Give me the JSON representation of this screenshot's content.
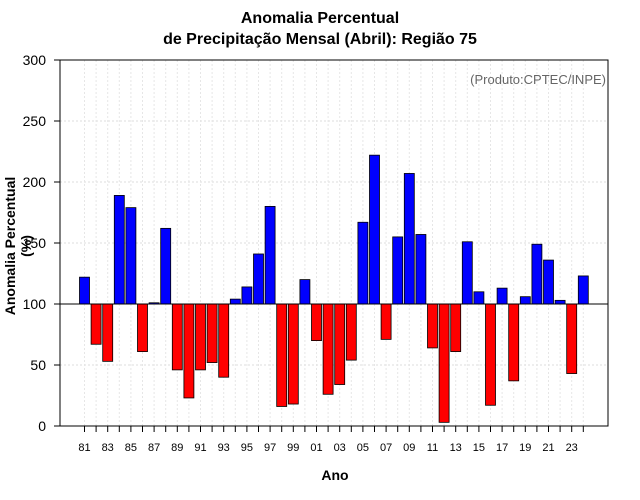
{
  "chart_data": {
    "type": "bar",
    "title": [
      "Anomalia Percentual",
      "de Precipitação Mensal (Abril): Região 75"
    ],
    "xlabel": "Ano",
    "ylabel": "Anomalia Percentual (%)",
    "source": "(Produto:CPTEC/INPE)",
    "baseline": 100,
    "ylim": [
      0,
      300
    ],
    "yticks": [
      0,
      50,
      100,
      150,
      200,
      250,
      300
    ],
    "grid": true,
    "positive_color": "#0000ff",
    "negative_color": "#ff0000",
    "categories": [
      "81",
      "82",
      "83",
      "84",
      "85",
      "86",
      "87",
      "88",
      "89",
      "90",
      "91",
      "92",
      "93",
      "94",
      "95",
      "96",
      "97",
      "98",
      "99",
      "00",
      "01",
      "02",
      "03",
      "04",
      "05",
      "06",
      "07",
      "08",
      "09",
      "10",
      "11",
      "12",
      "13",
      "14",
      "15",
      "16",
      "17",
      "18",
      "19",
      "20",
      "21",
      "22",
      "23",
      "24"
    ],
    "xtick_labels": [
      "81",
      "83",
      "85",
      "87",
      "89",
      "91",
      "93",
      "95",
      "97",
      "99",
      "01",
      "03",
      "05",
      "07",
      "09",
      "11",
      "13",
      "15",
      "17",
      "19",
      "21",
      "23"
    ],
    "values": [
      122,
      67,
      53,
      189,
      179,
      61,
      101,
      162,
      46,
      23,
      46,
      52,
      40,
      104,
      114,
      141,
      180,
      16,
      18,
      120,
      70,
      26,
      34,
      54,
      167,
      222,
      71,
      155,
      207,
      157,
      64,
      3,
      61,
      151,
      110,
      17,
      113,
      37,
      106,
      149,
      136,
      103,
      43,
      123
    ]
  }
}
